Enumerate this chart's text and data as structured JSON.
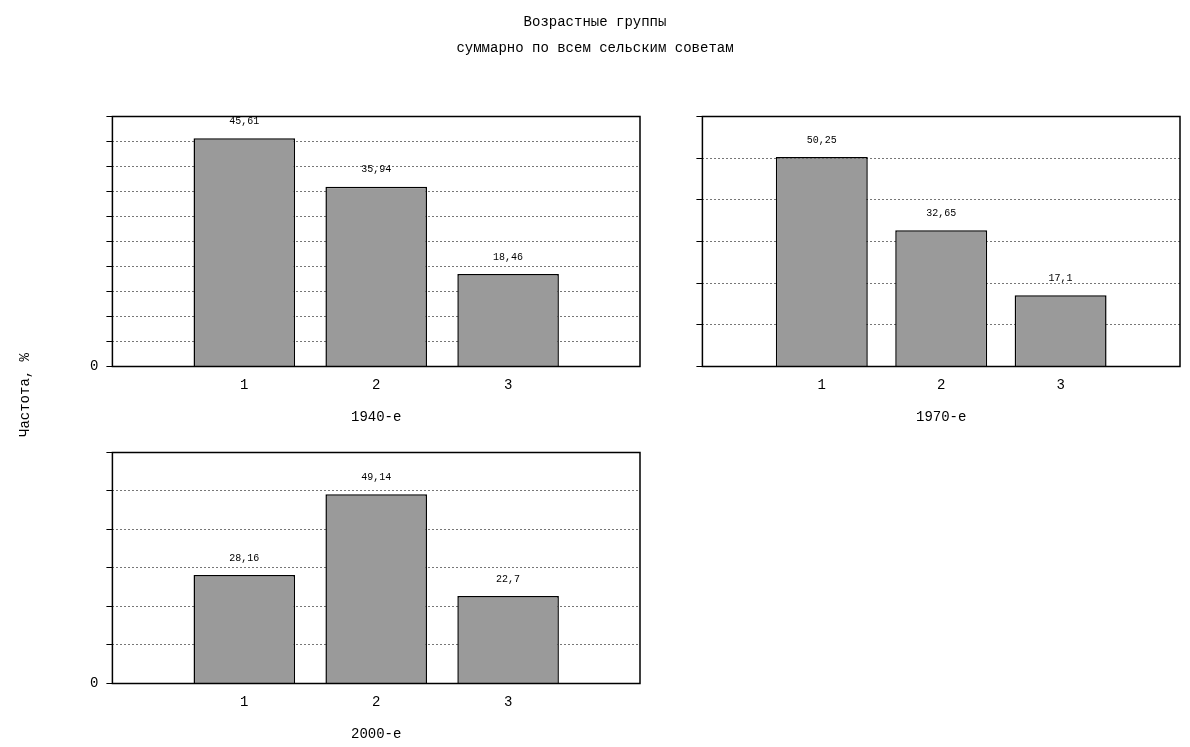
{
  "chart_data": [
    {
      "type": "bar",
      "title": "Возрастные группы",
      "subtitle": "суммарно по всем сельским советам",
      "ylabel": "Частота, %",
      "xlabel": "1940-е",
      "annotations": [
        "0"
      ],
      "categories": [
        "1",
        "2",
        "3"
      ],
      "series": [
        {
          "color": "#9a9a9a",
          "values": [
            45.61,
            35.94,
            18.46
          ],
          "value_labels": [
            "45,61",
            "35,94",
            "18,46"
          ]
        }
      ],
      "grid": "y",
      "line_style": "dotted",
      "tick_labels": "x"
    },
    {
      "type": "bar",
      "xlabel": "1970-е",
      "categories": [
        "1",
        "2",
        "3"
      ],
      "series": [
        {
          "color": "#9a9a9a",
          "values": [
            50.25,
            32.65,
            17.1
          ],
          "value_labels": [
            "50,25",
            "32,65",
            "17,1"
          ]
        }
      ],
      "grid": "y",
      "line_style": "dotted",
      "tick_labels": "x"
    },
    {
      "type": "bar",
      "xlabel": "2000-е",
      "annotations": [
        "0"
      ],
      "categories": [
        "1",
        "2",
        "3"
      ],
      "series": [
        {
          "color": "#9a9a9a",
          "values": [
            28.16,
            49.14,
            22.7
          ],
          "value_labels": [
            "28,16",
            "49,14",
            "22,7"
          ]
        }
      ],
      "grid": "y",
      "line_style": "dotted",
      "tick_labels": "x"
    }
  ]
}
